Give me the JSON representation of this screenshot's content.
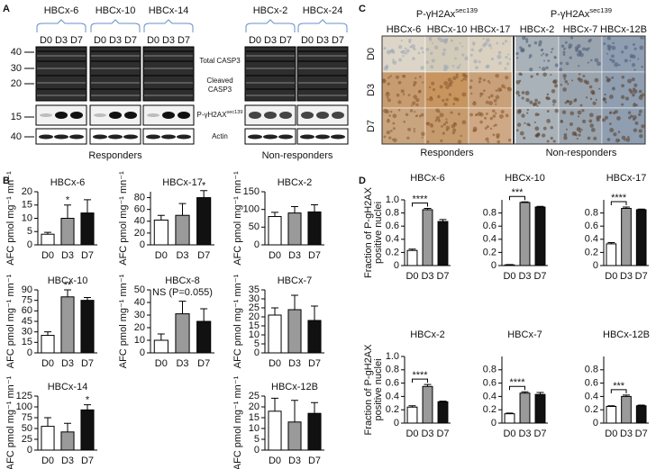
{
  "panel_a": {
    "label": "A",
    "groups": [
      {
        "name": "HBCx-6",
        "lanes": [
          "D0",
          "D3",
          "D7"
        ]
      },
      {
        "name": "HBCx-10",
        "lanes": [
          "D0",
          "D3",
          "D7"
        ]
      },
      {
        "name": "HBCx-14",
        "lanes": [
          "D0",
          "D3",
          "D7"
        ]
      },
      {
        "name": "HBCx-2",
        "lanes": [
          "D0",
          "D3",
          "D7"
        ]
      },
      {
        "name": "HBCx-24",
        "lanes": [
          "D0",
          "D3",
          "D7"
        ]
      }
    ],
    "markers": [
      40,
      30,
      20,
      15,
      40
    ],
    "bands": {
      "total": "Total CASP3",
      "cleaved": [
        "Cleaved",
        "CASP3"
      ],
      "phospho": {
        "main": "P-γH2AX",
        "sup": "sec139"
      },
      "actin": "Actin"
    },
    "responders": "Responders",
    "non_responders": "Non-responders"
  },
  "panel_c": {
    "label": "C",
    "headers": [
      {
        "main": "P-γH2Ax",
        "sup": "sec139"
      },
      {
        "main": "P-γH2Ax",
        "sup": "sec139"
      }
    ],
    "columns": [
      "HBCx-6",
      "HBCx-10",
      "HBCx-17",
      "HBCx-2",
      "HBCx-7",
      "HBCx-12B"
    ],
    "rows": [
      "D0",
      "D3",
      "D7"
    ],
    "responders": "Responders",
    "non_responders": "Non-responders"
  },
  "panel_b_label": "B",
  "panel_d_label": "D",
  "chart_data": [
    {
      "type": "bar",
      "title": "HBCx-6",
      "categories": [
        "D0",
        "D3",
        "D7"
      ],
      "values": [
        4,
        10,
        12
      ],
      "errors": [
        0.7,
        5,
        5
      ],
      "colors": [
        "#ffffff",
        "#9a9a9a",
        "#111111"
      ],
      "y_label": "AFC pmol mg⁻¹ mn⁻¹",
      "ylim": [
        0,
        20
      ],
      "yticks": [
        0,
        5,
        10,
        15,
        20
      ],
      "annotations": [
        {
          "text": "*",
          "category": "D3"
        }
      ]
    },
    {
      "type": "bar",
      "title": "HBCx-17",
      "categories": [
        "D0",
        "D3",
        "D7"
      ],
      "values": [
        42,
        50,
        80
      ],
      "errors": [
        8,
        20,
        12
      ],
      "colors": [
        "#ffffff",
        "#9a9a9a",
        "#111111"
      ],
      "y_label": "AFC pmol mg⁻¹ mn⁻¹",
      "ylim": [
        0,
        90
      ],
      "yticks": [
        0,
        20,
        40,
        60,
        80
      ],
      "annotations": [
        {
          "text": "*",
          "category": "D7"
        }
      ]
    },
    {
      "type": "bar",
      "title": "HBCx-2",
      "categories": [
        "D0",
        "D3",
        "D7"
      ],
      "values": [
        80,
        90,
        93
      ],
      "errors": [
        12,
        18,
        20
      ],
      "colors": [
        "#ffffff",
        "#9a9a9a",
        "#111111"
      ],
      "y_label": "AFC pmol mg⁻¹ mn⁻¹",
      "ylim": [
        0,
        150
      ],
      "yticks": [
        0,
        50,
        100,
        150
      ],
      "annotations": []
    },
    {
      "type": "bar",
      "title": "HBCx-10",
      "categories": [
        "D0",
        "D3",
        "D7"
      ],
      "values": [
        25,
        80,
        75
      ],
      "errors": [
        5,
        10,
        4
      ],
      "colors": [
        "#ffffff",
        "#9a9a9a",
        "#111111"
      ],
      "y_label": "AFC pmol mg⁻¹ mn⁻¹",
      "ylim": [
        0,
        90
      ],
      "yticks": [
        0,
        15,
        30,
        45,
        60,
        75,
        90
      ],
      "annotations": [
        {
          "text": "**",
          "category": "D3"
        }
      ]
    },
    {
      "type": "bar",
      "title": "HBCx-8",
      "categories": [
        "D0",
        "D3",
        "D7"
      ],
      "values": [
        10,
        31,
        25
      ],
      "errors": [
        5,
        10,
        10
      ],
      "colors": [
        "#ffffff",
        "#9a9a9a",
        "#111111"
      ],
      "y_label": "AFC pmol mg⁻¹ mn⁻¹",
      "ylim": [
        0,
        50
      ],
      "yticks": [
        0,
        10,
        20,
        30,
        40,
        50
      ],
      "annotations": [
        {
          "text": "NS (P=0.055)"
        }
      ]
    },
    {
      "type": "bar",
      "title": "HBCx-7",
      "categories": [
        "D0",
        "D3",
        "D7"
      ],
      "values": [
        21,
        24,
        18
      ],
      "errors": [
        4,
        8,
        8
      ],
      "colors": [
        "#ffffff",
        "#9a9a9a",
        "#111111"
      ],
      "y_label": "AFC pmol mg⁻¹ mn⁻¹",
      "ylim": [
        0,
        35
      ],
      "yticks": [
        0,
        5,
        10,
        15,
        20,
        25,
        30,
        35
      ],
      "annotations": []
    },
    {
      "type": "bar",
      "title": "HBCx-14",
      "categories": [
        "D0",
        "D3",
        "D7"
      ],
      "values": [
        55,
        42,
        93
      ],
      "errors": [
        20,
        20,
        12
      ],
      "colors": [
        "#ffffff",
        "#9a9a9a",
        "#111111"
      ],
      "y_label": "AFC pmol mg⁻¹ mn⁻¹",
      "ylim": [
        0,
        125
      ],
      "yticks": [
        0,
        25,
        50,
        75,
        100,
        125
      ],
      "annotations": [
        {
          "text": "*",
          "category": "D7"
        }
      ]
    },
    {
      "type": "bar",
      "title": "HBCx-12B",
      "categories": [
        "D0",
        "D3",
        "D7"
      ],
      "values": [
        18,
        13,
        17
      ],
      "errors": [
        6,
        10,
        5
      ],
      "colors": [
        "#ffffff",
        "#9a9a9a",
        "#111111"
      ],
      "y_label": "AFC pmol mg⁻¹ mn⁻¹",
      "ylim": [
        0,
        25
      ],
      "yticks": [
        0,
        5,
        10,
        15,
        20,
        25
      ],
      "annotations": []
    },
    {
      "type": "bar",
      "title": "HBCx-6",
      "categories": [
        "D0",
        "D3",
        "D7"
      ],
      "values": [
        0.23,
        0.85,
        0.67
      ],
      "errors": [
        0.02,
        0.02,
        0.03
      ],
      "colors": [
        "#ffffff",
        "#9a9a9a",
        "#111111"
      ],
      "y_label": [
        "Fraction of P-gH2AX",
        "positive nuclei"
      ],
      "ylim": [
        0,
        1
      ],
      "yticks": [
        0,
        0.2,
        0.4,
        0.6,
        0.8,
        {
          "value": 1,
          "label": "1.0"
        }
      ],
      "annotations": [
        {
          "text": "****",
          "from": "D0",
          "to": "D3"
        }
      ]
    },
    {
      "type": "bar",
      "title": "HBCx-10",
      "categories": [
        "D0",
        "D3",
        "D7"
      ],
      "values": [
        0.01,
        0.96,
        0.89
      ],
      "errors": [
        0.005,
        0.01,
        0.01
      ],
      "colors": [
        "#ffffff",
        "#9a9a9a",
        "#111111"
      ],
      "ylim": [
        0,
        1
      ],
      "yticks": [
        0,
        0.2,
        0.4,
        0.6,
        0.8
      ],
      "annotations": [
        {
          "text": "***",
          "from": "D0",
          "to": "D3"
        }
      ]
    },
    {
      "type": "bar",
      "title": "HBCx-17",
      "categories": [
        "D0",
        "D3",
        "D7"
      ],
      "values": [
        0.33,
        0.87,
        0.85
      ],
      "errors": [
        0.02,
        0.02,
        0.01
      ],
      "colors": [
        "#ffffff",
        "#9a9a9a",
        "#111111"
      ],
      "ylim": [
        0,
        1
      ],
      "yticks": [
        0,
        0.2,
        0.4,
        0.6,
        0.8
      ],
      "annotations": [
        {
          "text": "****",
          "from": "D0",
          "to": "D3"
        }
      ]
    },
    {
      "type": "bar",
      "title": "HBCx-2",
      "categories": [
        "D0",
        "D3",
        "D7"
      ],
      "values": [
        0.24,
        0.55,
        0.32
      ],
      "errors": [
        0.02,
        0.03,
        0.01
      ],
      "colors": [
        "#ffffff",
        "#9a9a9a",
        "#111111"
      ],
      "y_label": [
        "Fraction of P-gH2AX",
        "positive nuclei"
      ],
      "ylim": [
        0,
        1
      ],
      "yticks": [
        0,
        0.2,
        0.4,
        0.6,
        0.8,
        {
          "value": 1,
          "label": "1.0"
        }
      ],
      "annotations": [
        {
          "text": "****",
          "from": "D0",
          "to": "D3"
        }
      ]
    },
    {
      "type": "bar",
      "title": "HBCx-7",
      "categories": [
        "D0",
        "D3",
        "D7"
      ],
      "values": [
        0.14,
        0.45,
        0.43
      ],
      "errors": [
        0.01,
        0.02,
        0.03
      ],
      "colors": [
        "#ffffff",
        "#9a9a9a",
        "#111111"
      ],
      "ylim": [
        0,
        1
      ],
      "yticks": [
        0,
        0.2,
        0.4,
        0.6,
        0.8
      ],
      "annotations": [
        {
          "text": "****",
          "from": "D0",
          "to": "D3"
        }
      ]
    },
    {
      "type": "bar",
      "title": "HBCx-12B",
      "categories": [
        "D0",
        "D3",
        "D7"
      ],
      "values": [
        0.25,
        0.4,
        0.26
      ],
      "errors": [
        0.01,
        0.02,
        0.01
      ],
      "colors": [
        "#ffffff",
        "#9a9a9a",
        "#111111"
      ],
      "ylim": [
        0,
        1
      ],
      "yticks": [
        0,
        0.2,
        0.4,
        0.6,
        0.8
      ],
      "annotations": [
        {
          "text": "***",
          "from": "D0",
          "to": "D3"
        }
      ]
    }
  ]
}
